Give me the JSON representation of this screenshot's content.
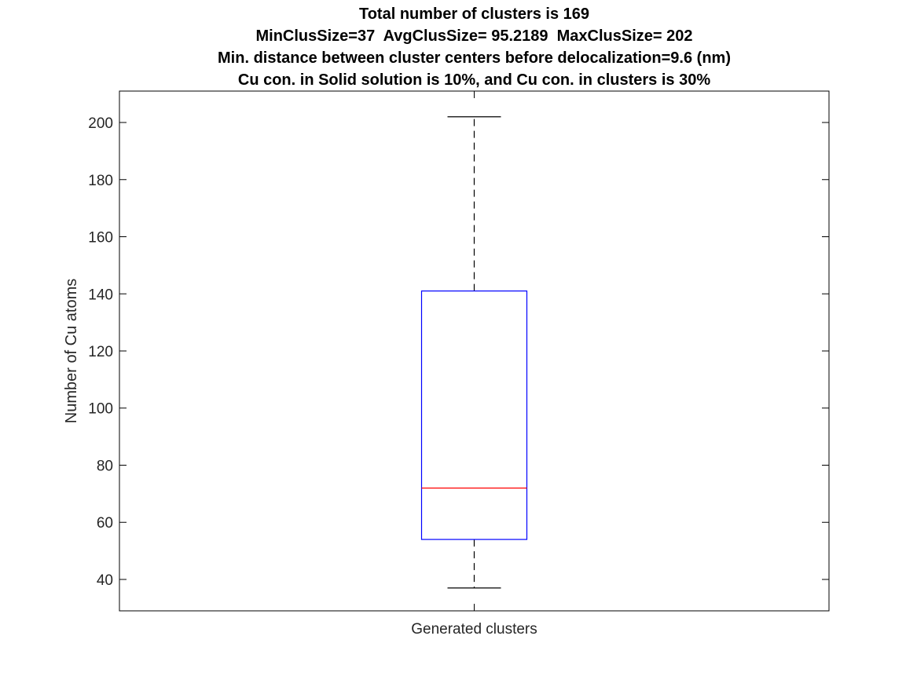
{
  "chart_data": {
    "type": "box",
    "title_lines": [
      "Total number of clusters is 169",
      "MinClusSize=37  AvgClusSize= 95.2189  MaxClusSize= 202",
      "Min. distance between cluster centers before delocalization=9.6 (nm)",
      "Cu con. in Solid solution is 10%, and Cu con. in clusters is 30%"
    ],
    "xlabel": "",
    "ylabel": "Number of Cu atoms",
    "categories": [
      "Generated clusters"
    ],
    "ylim": [
      29,
      211
    ],
    "yticks": [
      40,
      60,
      80,
      100,
      120,
      140,
      160,
      180,
      200
    ],
    "ytick_labels": [
      "40",
      "60",
      "80",
      "100",
      "120",
      "140",
      "160",
      "180",
      "200"
    ],
    "grid": false,
    "boxes": [
      {
        "category": "Generated clusters",
        "whisker_low": 37,
        "q1": 54,
        "median": 72,
        "q3": 141,
        "whisker_high": 202
      }
    ],
    "colors": {
      "box": "#0000ff",
      "median": "#ff0000",
      "whisker": "#000000",
      "axis": "#000000",
      "text": "#262626"
    }
  }
}
